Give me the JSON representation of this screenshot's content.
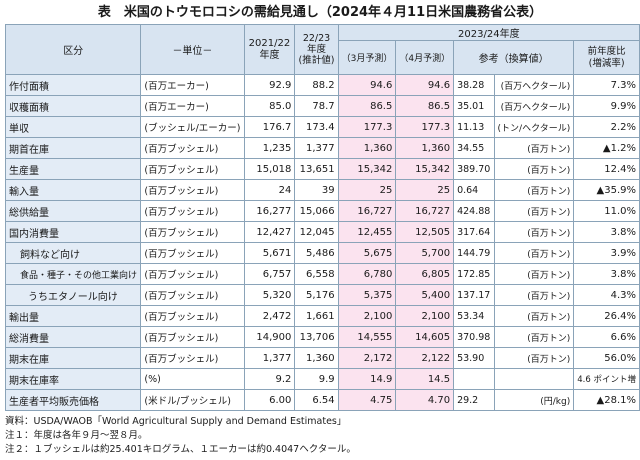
{
  "title": "表　米国のトウモロコシの需給見通し（2024年４月11日米国農務省公表）",
  "headers": {
    "kubun": "区分",
    "unit": "－単位－",
    "y2122": "2021/22\n年度",
    "y2223": "22/23\n年度\n(推計値)",
    "y2324": "2023/24年度",
    "march": "（3月予測）",
    "april": "（4月予測）",
    "ref": "参考（換算値）",
    "change": "前年度比\n(増減率)"
  },
  "rows": [
    {
      "label": "作付面積",
      "unit": "(百万エーカー)",
      "y2122": "92.9",
      "y2223": "88.2",
      "march": "94.6",
      "april": "94.6",
      "ref": "38.28",
      "ref_unit": "(百万ヘクタール)",
      "change": "7.3%"
    },
    {
      "label": "収穫面積",
      "unit": "(百万エーカー)",
      "y2122": "85.0",
      "y2223": "78.7",
      "march": "86.5",
      "april": "86.5",
      "ref": "35.01",
      "ref_unit": "(百万ヘクタール)",
      "change": "9.9%"
    },
    {
      "label": "単収",
      "unit": "(ブッシェル/エーカー)",
      "y2122": "176.7",
      "y2223": "173.4",
      "march": "177.3",
      "april": "177.3",
      "ref": "11.13",
      "ref_unit": "(トン/ヘクタール)",
      "change": "2.2%"
    },
    {
      "label": "期首在庫",
      "unit": "(百万ブッシェル)",
      "y2122": "1,235",
      "y2223": "1,377",
      "march": "1,360",
      "april": "1,360",
      "ref": "34.55",
      "ref_unit": "(百万トン)",
      "change": "▲1.2%"
    },
    {
      "label": "生産量",
      "unit": "(百万ブッシェル)",
      "y2122": "15,018",
      "y2223": "13,651",
      "march": "15,342",
      "april": "15,342",
      "ref": "389.70",
      "ref_unit": "(百万トン)",
      "change": "12.4%"
    },
    {
      "label": "輸入量",
      "unit": "(百万ブッシェル)",
      "y2122": "24",
      "y2223": "39",
      "march": "25",
      "april": "25",
      "ref": "0.64",
      "ref_unit": "(百万トン)",
      "change": "▲35.9%"
    },
    {
      "label": "総供給量",
      "unit": "(百万ブッシェル)",
      "y2122": "16,277",
      "y2223": "15,066",
      "march": "16,727",
      "april": "16,727",
      "ref": "424.88",
      "ref_unit": "(百万トン)",
      "change": "11.0%"
    },
    {
      "label": "国内消費量",
      "unit": "(百万ブッシェル)",
      "y2122": "12,427",
      "y2223": "12,045",
      "march": "12,455",
      "april": "12,505",
      "ref": "317.64",
      "ref_unit": "(百万トン)",
      "change": "3.8%"
    },
    {
      "label": "飼料など向け",
      "unit": "(百万ブッシェル)",
      "y2122": "5,671",
      "y2223": "5,486",
      "march": "5,675",
      "april": "5,700",
      "ref": "144.79",
      "ref_unit": "(百万トン)",
      "change": "3.9%"
    },
    {
      "label": "食品・種子・その他工業向け",
      "unit": "(百万ブッシェル)",
      "y2122": "6,757",
      "y2223": "6,558",
      "march": "6,780",
      "april": "6,805",
      "ref": "172.85",
      "ref_unit": "(百万トン)",
      "change": "3.8%"
    },
    {
      "label": "うちエタノール向け",
      "unit": "(百万ブッシェル)",
      "y2122": "5,320",
      "y2223": "5,176",
      "march": "5,375",
      "april": "5,400",
      "ref": "137.17",
      "ref_unit": "(百万トン)",
      "change": "4.3%"
    },
    {
      "label": "輸出量",
      "unit": "(百万ブッシェル)",
      "y2122": "2,472",
      "y2223": "1,661",
      "march": "2,100",
      "april": "2,100",
      "ref": "53.34",
      "ref_unit": "(百万トン)",
      "change": "26.4%"
    },
    {
      "label": "総消費量",
      "unit": "(百万ブッシェル)",
      "y2122": "14,900",
      "y2223": "13,706",
      "march": "14,555",
      "april": "14,605",
      "ref": "370.98",
      "ref_unit": "(百万トン)",
      "change": "6.6%"
    },
    {
      "label": "期末在庫",
      "unit": "(百万ブッシェル)",
      "y2122": "1,377",
      "y2223": "1,360",
      "march": "2,172",
      "april": "2,122",
      "ref": "53.90",
      "ref_unit": "(百万トン)",
      "change": "56.0%"
    },
    {
      "label": "期末在庫率",
      "unit": "(%)",
      "y2122": "9.2",
      "y2223": "9.9",
      "march": "14.9",
      "april": "14.5",
      "ref": "",
      "ref_unit": "",
      "change": "4.6 ポイント増"
    },
    {
      "label": "生産者平均販売価格",
      "unit": "(米ドル/ブッシェル)",
      "y2122": "6.00",
      "y2223": "6.54",
      "march": "4.75",
      "april": "4.70",
      "ref": "29.2",
      "ref_unit": "(円/kg)",
      "change": "▲28.1%"
    }
  ],
  "notes": [
    "資料：USDA/WAOB「World Agricultural Supply and Demand Estimates」",
    "注１：年度は各年９月～翌８月。",
    "注２：１ブッシェルは約25.401キログラム、１エーカーは約0.4047ヘクタール。"
  ]
}
